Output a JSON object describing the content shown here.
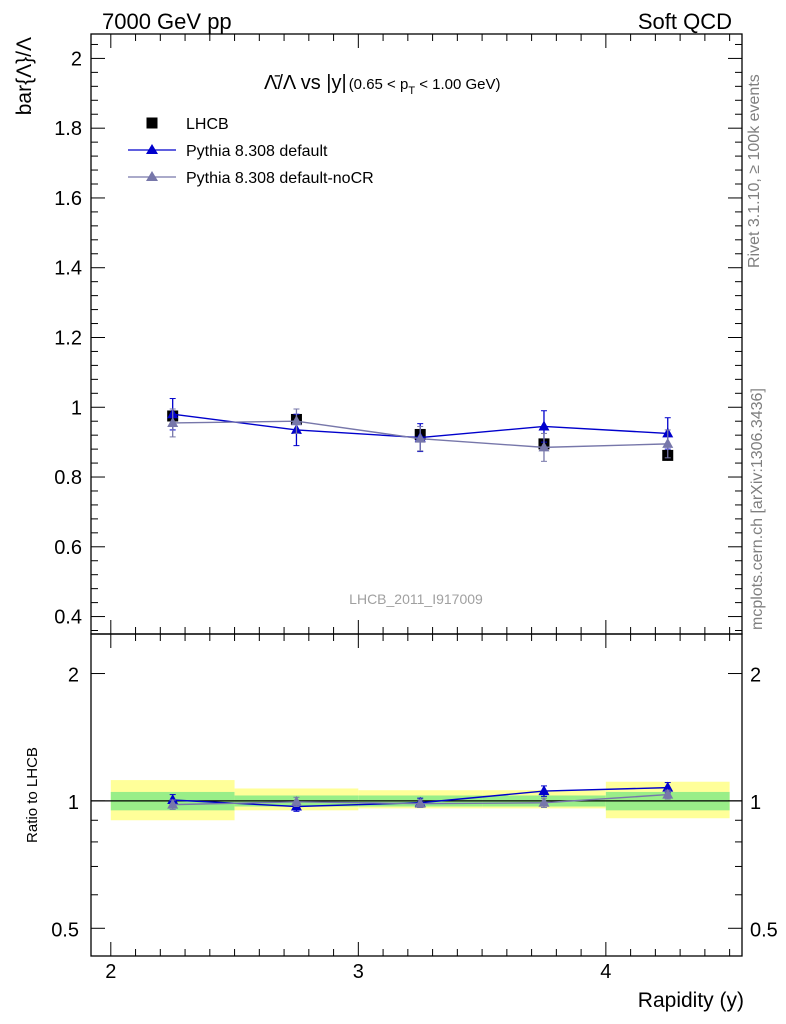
{
  "header": {
    "left": "7000 GeV pp",
    "right": "Soft QCD"
  },
  "side_labels": {
    "rivet": "Rivet 3.1.10, ≥ 100k events",
    "mcplots": "mcplots.cern.ch [arXiv:1306.3436]"
  },
  "watermark": "LHCB_2011_I917009",
  "title_parts": {
    "main": "Λ̄/Λ vs |y|",
    "cut_open": "(0.65 < p",
    "cut_sub": "T",
    "cut_close": " < 1.00 GeV)"
  },
  "legend": [
    {
      "label": "LHCB",
      "color": "#000000",
      "marker": "square"
    },
    {
      "label": "Pythia 8.308 default",
      "color": "#0000cc",
      "marker": "triangle"
    },
    {
      "label": "Pythia 8.308 default-noCR",
      "color": "#7777aa",
      "marker": "triangle"
    }
  ],
  "chart_data": [
    {
      "type": "line",
      "panel": "main",
      "ylabel": "bar{Λ}/Λ",
      "xlim": [
        1.92,
        4.55
      ],
      "ylim": [
        0.35,
        2.07
      ],
      "yticks": [
        0.4,
        0.6,
        0.8,
        1.0,
        1.2,
        1.4,
        1.6,
        1.8,
        2.0
      ],
      "ytick_labels": [
        "0.4",
        "0.6",
        "0.8",
        "1",
        "1.2",
        "1.4",
        "1.6",
        "1.8",
        "2"
      ],
      "bin_edges": [
        2.0,
        2.5,
        3.0,
        3.5,
        4.0,
        4.5
      ],
      "data": {
        "name": "LHCB",
        "x": [
          2.25,
          2.75,
          3.25,
          3.75,
          4.25
        ],
        "y": [
          0.975,
          0.965,
          0.922,
          0.895,
          0.862
        ],
        "err": [
          0.02,
          0.015,
          0.015,
          0.015,
          0.015
        ]
      },
      "series": [
        {
          "name": "Pythia 8.308 default",
          "x": [
            2.25,
            2.75,
            3.25,
            3.75,
            4.25
          ],
          "y": [
            0.98,
            0.935,
            0.913,
            0.945,
            0.925
          ],
          "err": [
            0.045,
            0.045,
            0.04,
            0.045,
            0.045
          ]
        },
        {
          "name": "Pythia 8.308 default-noCR",
          "x": [
            2.25,
            2.75,
            3.25,
            3.75,
            4.25
          ],
          "y": [
            0.955,
            0.96,
            0.91,
            0.885,
            0.895
          ],
          "err": [
            0.04,
            0.035,
            0.035,
            0.04,
            0.04
          ]
        }
      ]
    },
    {
      "type": "line",
      "panel": "ratio",
      "ylabel": "Ratio to LHCB",
      "xlabel": "Rapidity (y)",
      "xlim": [
        1.92,
        4.55
      ],
      "ylim": [
        0.43,
        2.48
      ],
      "log_y": true,
      "yticks": [
        0.5,
        1,
        2
      ],
      "ytick_labels": [
        "0.5",
        "1",
        "2"
      ],
      "xticks": [
        2,
        3,
        4
      ],
      "xtick_labels": [
        "2",
        "3",
        "4"
      ],
      "bin_edges": [
        2.0,
        2.5,
        3.0,
        3.5,
        4.0,
        4.5
      ],
      "band_inner": [
        [
          0.95,
          1.05
        ],
        [
          0.97,
          1.03
        ],
        [
          0.97,
          1.03
        ],
        [
          0.97,
          1.03
        ],
        [
          0.95,
          1.05
        ]
      ],
      "band_outer": [
        [
          0.9,
          1.12
        ],
        [
          0.95,
          1.07
        ],
        [
          0.96,
          1.06
        ],
        [
          0.96,
          1.06
        ],
        [
          0.91,
          1.11
        ]
      ],
      "series": [
        {
          "name": "Pythia 8.308 default",
          "x": [
            2.25,
            2.75,
            3.25,
            3.75,
            4.25
          ],
          "y": [
            1.005,
            0.97,
            0.99,
            1.055,
            1.075
          ],
          "err": [
            0.03,
            0.025,
            0.025,
            0.03,
            0.03
          ]
        },
        {
          "name": "Pythia 8.308 default-noCR",
          "x": [
            2.25,
            2.75,
            3.25,
            3.75,
            4.25
          ],
          "y": [
            0.98,
            0.995,
            0.985,
            0.99,
            1.035
          ],
          "err": [
            0.025,
            0.025,
            0.02,
            0.025,
            0.025
          ]
        }
      ]
    }
  ]
}
